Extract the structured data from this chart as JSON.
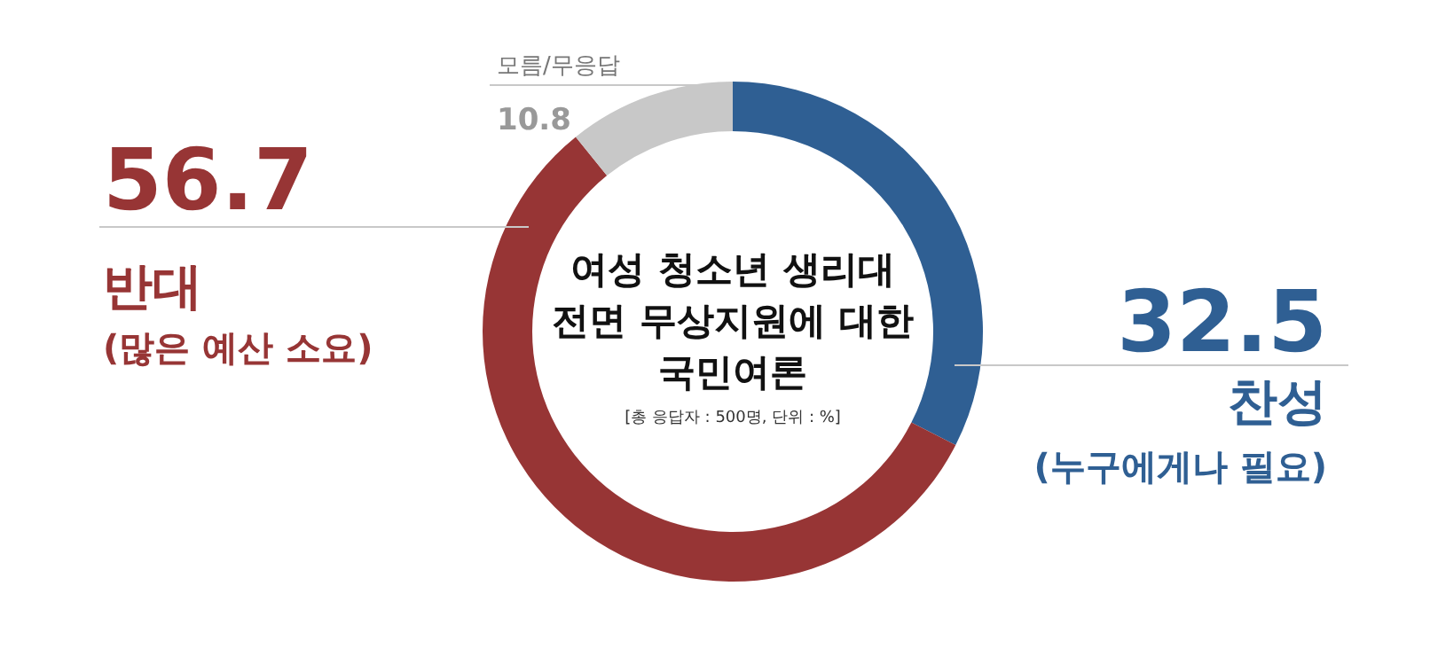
{
  "chart_data": {
    "type": "donut",
    "title": "여성 청소년 생리대\n전면 무상지원에 대한\n국민여론",
    "subtitle": "[총 응답자 : 500명, 단위 : %]",
    "categories": [
      "찬성",
      "반대",
      "모름/무응답"
    ],
    "values": [
      32.5,
      56.7,
      10.8
    ],
    "colors": [
      "#2f5f93",
      "#973535",
      "#c8c8c8"
    ],
    "annotations": [
      "(누구에게나 필요)",
      "(많은 예산 소요)"
    ],
    "data_labels": true
  }
}
